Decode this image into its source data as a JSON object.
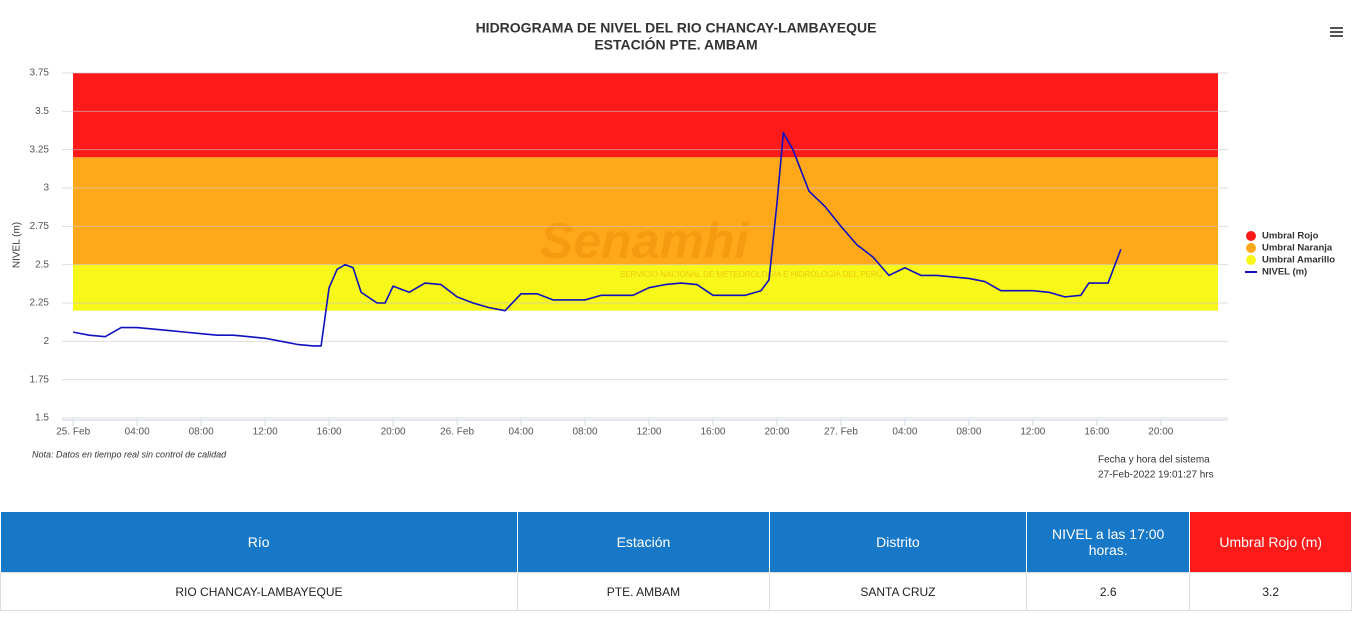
{
  "chart_data": {
    "type": "line",
    "title": "HIDROGRAMA DE NIVEL DEL RIO CHANCAY-LAMBAYEQUE",
    "subtitle": "ESTACIÓN PTE. AMBAM",
    "y_label": "NIVEL (m)",
    "watermark": "Senamhi",
    "watermark_sub": "SERVICIO NACIONAL DE METEOROLOGÍA E HIDROLOGÍA DEL PERÚ",
    "note": "Nota: Datos en tiempo real sin control de calidad",
    "system_time_label": "Fecha y hora del sistema",
    "system_time": "27-Feb-2022 19:01:27 hrs",
    "x": [
      0,
      1,
      2,
      3,
      4,
      5,
      6,
      7,
      8,
      9,
      10,
      11,
      12,
      13,
      14,
      15,
      15.5,
      16,
      16.5,
      17,
      17.5,
      18,
      19,
      19.5,
      20,
      21,
      22,
      23,
      24,
      25,
      26,
      27,
      28,
      29,
      30,
      31,
      32,
      33,
      34,
      35,
      36,
      37,
      38,
      39,
      40,
      41,
      42,
      43,
      43.5,
      44,
      44.4,
      45,
      46,
      47,
      48,
      49,
      50,
      51,
      52,
      53,
      54,
      55,
      56,
      57,
      58,
      59,
      60,
      61,
      62,
      63,
      63.5,
      64,
      64.7,
      65.5
    ],
    "series": [
      {
        "name": "NIVEL (m)",
        "color": "#1010c0",
        "values": [
          2.06,
          2.04,
          2.03,
          2.09,
          2.09,
          2.08,
          2.07,
          2.06,
          2.05,
          2.04,
          2.04,
          2.03,
          2.02,
          2.0,
          1.98,
          1.97,
          1.97,
          2.35,
          2.47,
          2.5,
          2.48,
          2.32,
          2.25,
          2.25,
          2.36,
          2.32,
          2.38,
          2.37,
          2.29,
          2.25,
          2.22,
          2.2,
          2.31,
          2.31,
          2.27,
          2.27,
          2.27,
          2.3,
          2.3,
          2.3,
          2.35,
          2.37,
          2.38,
          2.37,
          2.3,
          2.3,
          2.3,
          2.33,
          2.4,
          2.9,
          3.36,
          3.25,
          2.98,
          2.88,
          2.75,
          2.63,
          2.55,
          2.43,
          2.48,
          2.43,
          2.43,
          2.42,
          2.41,
          2.39,
          2.33,
          2.33,
          2.33,
          2.32,
          2.29,
          2.3,
          2.38,
          2.38,
          2.38,
          2.6
        ]
      }
    ],
    "bands": [
      {
        "name": "Umbral Rojo",
        "color": "#ff1a1a",
        "from": 3.2,
        "to": 3.75
      },
      {
        "name": "Umbral Naranja",
        "color": "#ffa91a",
        "from": 2.5,
        "to": 3.2
      },
      {
        "name": "Umbral Amarillo",
        "color": "#f7f71a",
        "from": 2.2,
        "to": 2.5
      }
    ],
    "xlim": [
      -0.7,
      72.2
    ],
    "xticks": [
      {
        "value": 0,
        "label": "25. Feb"
      },
      {
        "value": 4,
        "label": "04:00"
      },
      {
        "value": 8,
        "label": "08:00"
      },
      {
        "value": 12,
        "label": "12:00"
      },
      {
        "value": 16,
        "label": "16:00"
      },
      {
        "value": 20,
        "label": "20:00"
      },
      {
        "value": 24,
        "label": "26. Feb"
      },
      {
        "value": 28,
        "label": "04:00"
      },
      {
        "value": 32,
        "label": "08:00"
      },
      {
        "value": 36,
        "label": "12:00"
      },
      {
        "value": 40,
        "label": "16:00"
      },
      {
        "value": 44,
        "label": "20:00"
      },
      {
        "value": 48,
        "label": "27. Feb"
      },
      {
        "value": 52,
        "label": "04:00"
      },
      {
        "value": 56,
        "label": "08:00"
      },
      {
        "value": 60,
        "label": "12:00"
      },
      {
        "value": 64,
        "label": "16:00"
      },
      {
        "value": 68,
        "label": "20:00"
      }
    ],
    "ylim": [
      1.5,
      3.75
    ],
    "yticks": [
      1.5,
      1.75,
      2,
      2.25,
      2.5,
      2.75,
      3,
      3.25,
      3.5,
      3.75
    ],
    "grid": true
  },
  "table": {
    "headers": [
      "Río",
      "Estación",
      "Distrito",
      "NIVEL a las 17:00 horas.",
      "Umbral Rojo (m)"
    ],
    "rows": [
      [
        "RIO CHANCAY-LAMBAYEQUE",
        "PTE. AMBAM",
        "SANTA CRUZ",
        2.6,
        3.2
      ]
    ]
  }
}
